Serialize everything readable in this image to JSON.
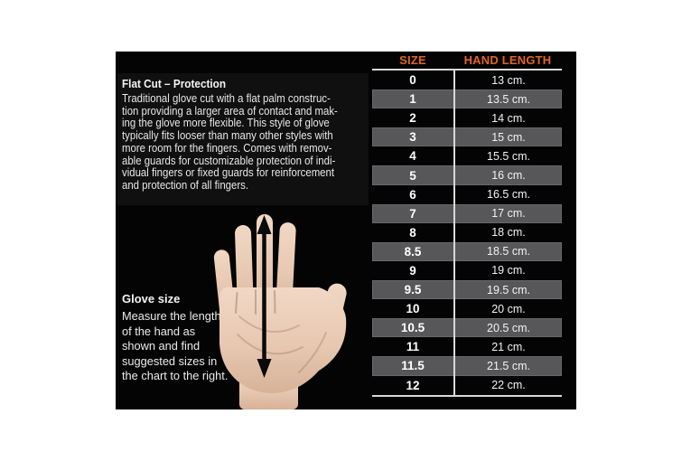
{
  "flat_cut": {
    "heading": "Flat Cut – Protection",
    "lines": [
      "Traditional glove cut with a flat palm construc-",
      "tion providing a larger area of contact and mak-",
      "ing the glove more flexible. This style of glove",
      "typically fits looser than many other styles with",
      "more room for the fingers. Comes with remov-",
      "able guards for customizable protection of indi-",
      "vidual fingers or fixed guards for reinforcement",
      "and protection of all fingers."
    ]
  },
  "glove_size": {
    "heading": "Glove size",
    "lines": [
      "Measure the length",
      "of the hand as",
      "shown and find",
      "suggested sizes in",
      "the chart to the right."
    ]
  },
  "size_table": {
    "headers": [
      "SIZE",
      "HAND LENGTH"
    ],
    "rows": [
      [
        "0",
        "13 cm."
      ],
      [
        "1",
        "13.5 cm."
      ],
      [
        "2",
        "14 cm."
      ],
      [
        "3",
        "15 cm."
      ],
      [
        "4",
        "15.5 cm."
      ],
      [
        "5",
        "16 cm."
      ],
      [
        "6",
        "16.5 cm."
      ],
      [
        "7",
        "17 cm."
      ],
      [
        "8",
        "18 cm."
      ],
      [
        "8.5",
        "18.5 cm."
      ],
      [
        "9",
        "19 cm."
      ],
      [
        "9.5",
        "19.5 cm."
      ],
      [
        "10",
        "20 cm."
      ],
      [
        "10.5",
        "20.5 cm."
      ],
      [
        "11",
        "21 cm."
      ],
      [
        "11.5",
        "21.5 cm."
      ],
      [
        "12",
        "22 cm."
      ]
    ]
  },
  "icons": {
    "measurement_arrow": "double-headed-vertical-arrow",
    "hand_illustration": "open-palm-hand-facing-viewer"
  },
  "colors": {
    "accent_orange": "#E2661F",
    "stripe_gray": "#57575a",
    "divider_line": "#d9d9d9",
    "panel_black": "#040404",
    "hand_skin": "#e7c8b2",
    "hand_skin_light": "#f1d8c5",
    "hand_skin_dark": "#d7b297"
  }
}
